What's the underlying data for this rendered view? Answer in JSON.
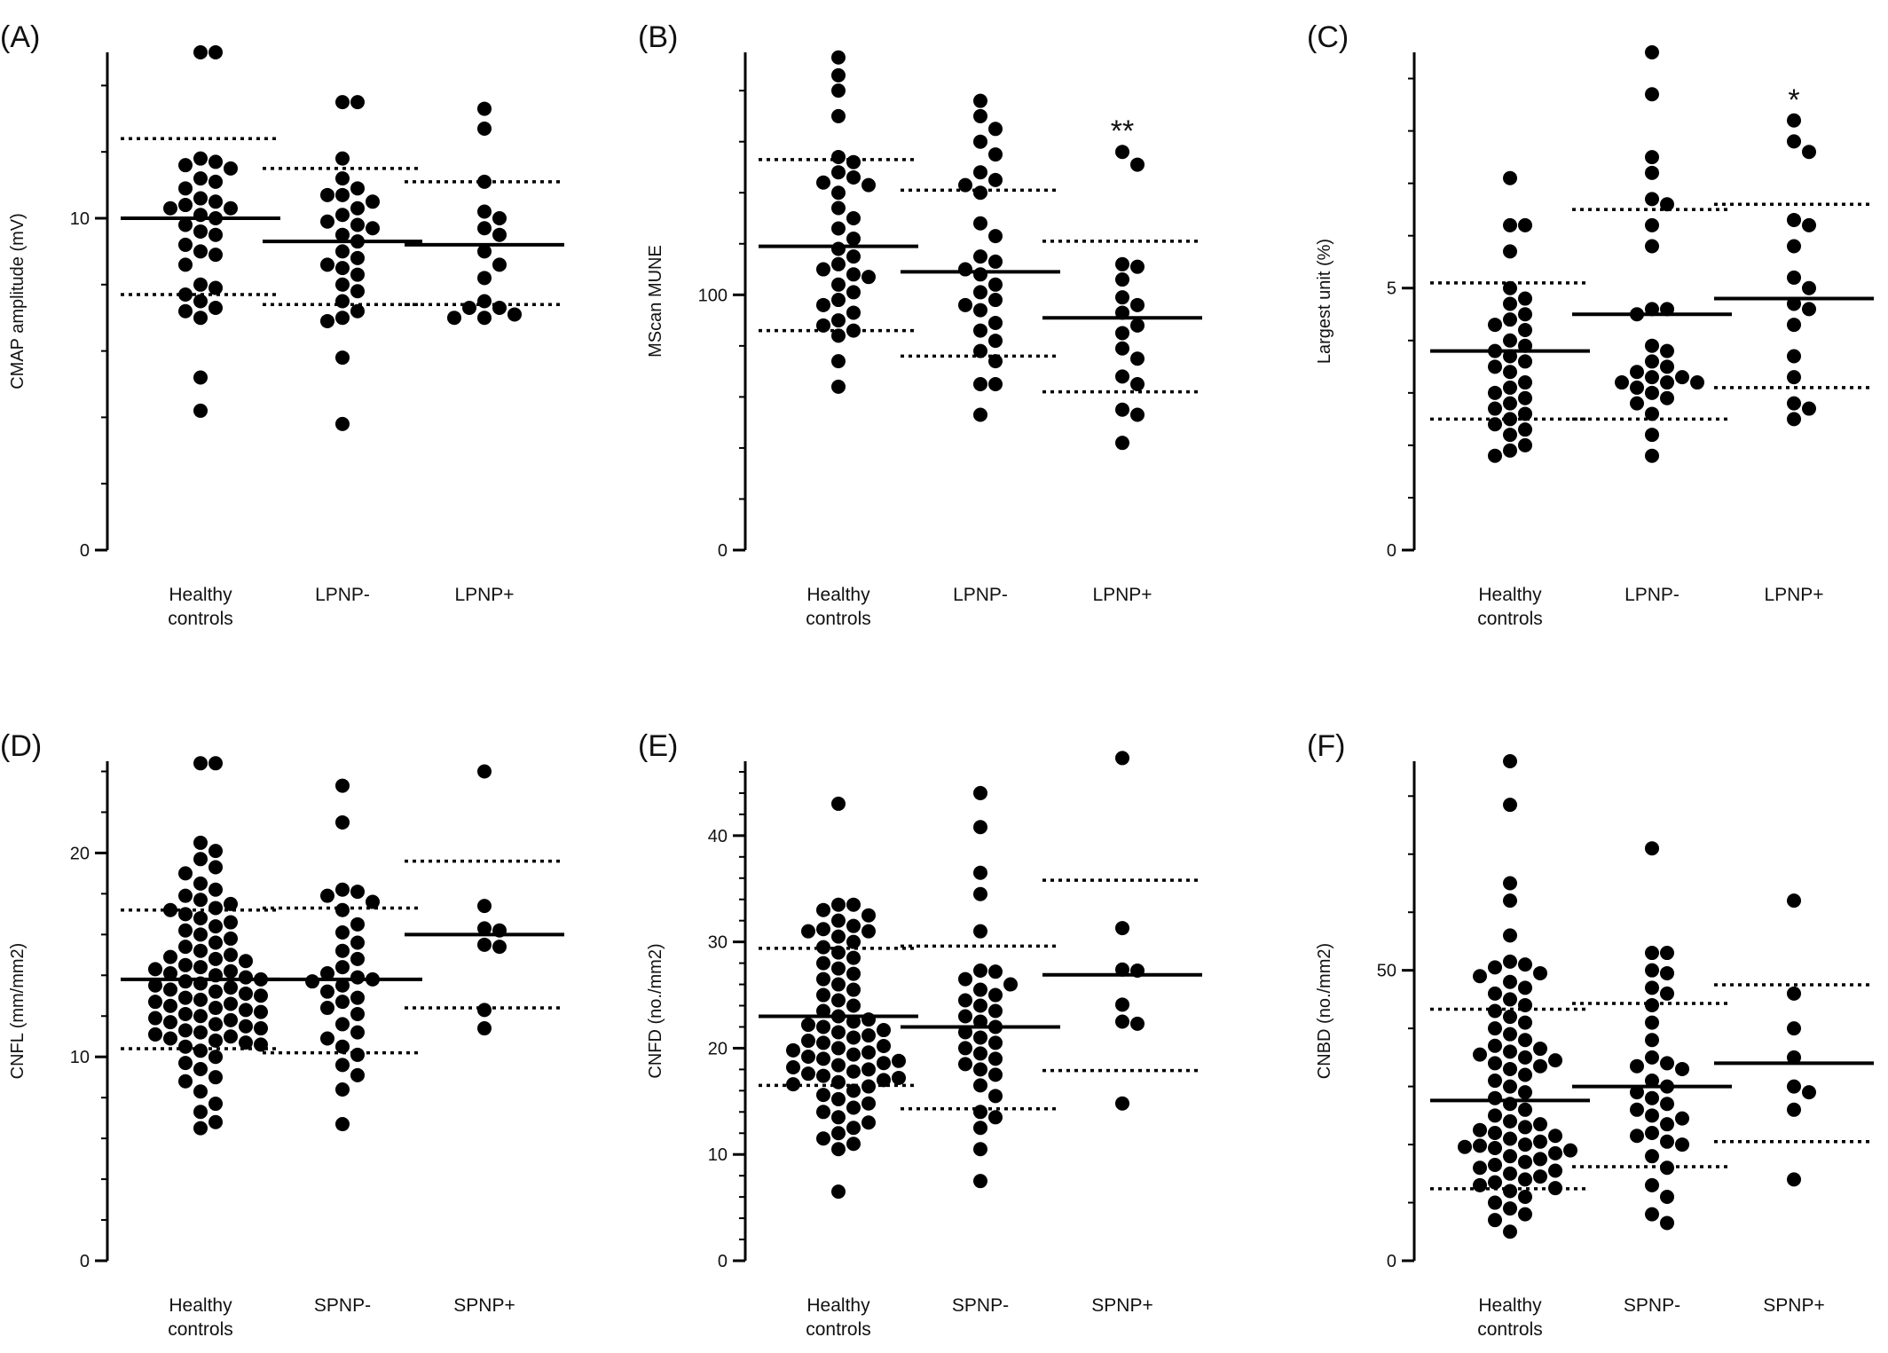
{
  "figure": {
    "background": "#ffffff",
    "ink": "#000000"
  },
  "chart_data": [
    {
      "panel_label": "(A)",
      "type": "scatter",
      "subtype": "dot-plot",
      "ylabel": "CMAP amplitude (mV)",
      "ylim": [
        0,
        15
      ],
      "yticks": [
        0,
        10
      ],
      "ytick_labels": [
        "0",
        "10"
      ],
      "categories": [
        "Healthy\ncontrols",
        "LPNP-",
        "LPNP+"
      ],
      "annotations": [
        "",
        "",
        ""
      ],
      "series": [
        {
          "values": [
            15.0,
            15.0,
            11.8,
            11.7,
            11.6,
            11.5,
            11.2,
            11.1,
            10.9,
            10.6,
            10.5,
            10.4,
            10.3,
            10.3,
            10.1,
            10.0,
            9.8,
            9.6,
            9.5,
            9.2,
            9.0,
            8.9,
            8.6,
            8.0,
            7.9,
            7.7,
            7.5,
            7.3,
            7.2,
            7.0,
            5.2,
            4.2
          ],
          "mean": 10.0,
          "upper": 12.4,
          "lower": 7.7
        },
        {
          "values": [
            13.5,
            13.5,
            11.8,
            11.2,
            10.9,
            10.7,
            10.7,
            10.5,
            10.3,
            10.1,
            9.9,
            9.8,
            9.7,
            9.5,
            9.3,
            9.0,
            8.8,
            8.6,
            8.5,
            8.3,
            8.0,
            7.8,
            7.5,
            7.2,
            7.0,
            6.9,
            5.8,
            3.8
          ],
          "mean": 9.3,
          "upper": 11.5,
          "lower": 7.4
        },
        {
          "values": [
            13.3,
            12.7,
            11.1,
            10.2,
            10.0,
            9.7,
            9.5,
            9.0,
            8.6,
            8.2,
            7.5,
            7.3,
            7.3,
            7.1,
            7.0,
            7.0
          ],
          "mean": 9.2,
          "upper": 11.1,
          "lower": 7.4
        }
      ]
    },
    {
      "panel_label": "(B)",
      "type": "scatter",
      "subtype": "dot-plot",
      "ylabel": "MScan MUNE",
      "ylim": [
        0,
        195
      ],
      "yticks": [
        0,
        100
      ],
      "ytick_labels": [
        "0",
        "100"
      ],
      "categories": [
        "Healthy\ncontrols",
        "LPNP-",
        "LPNP+"
      ],
      "annotations": [
        "",
        "",
        "**"
      ],
      "series": [
        {
          "values": [
            193,
            186,
            180,
            170,
            154,
            152,
            148,
            146,
            144,
            143,
            140,
            134,
            130,
            126,
            122,
            118,
            115,
            112,
            110,
            108,
            107,
            104,
            101,
            98,
            96,
            93,
            90,
            88,
            86,
            84,
            74,
            64
          ],
          "mean": 119,
          "upper": 153,
          "lower": 86
        },
        {
          "values": [
            176,
            170,
            165,
            160,
            155,
            148,
            145,
            143,
            140,
            128,
            123,
            115,
            113,
            110,
            108,
            104,
            101,
            98,
            96,
            94,
            89,
            86,
            82,
            78,
            74,
            65,
            65,
            53
          ],
          "mean": 109,
          "upper": 141,
          "lower": 76
        },
        {
          "values": [
            156,
            151,
            112,
            111,
            106,
            99,
            96,
            93,
            88,
            85,
            79,
            75,
            68,
            65,
            55,
            53,
            42
          ],
          "mean": 91,
          "upper": 121,
          "lower": 62
        }
      ]
    },
    {
      "panel_label": "(C)",
      "type": "scatter",
      "subtype": "dot-plot",
      "ylabel": "Largest unit (%)",
      "ylim": [
        0,
        9.5
      ],
      "yticks": [
        0,
        5
      ],
      "ytick_labels": [
        "0",
        "5"
      ],
      "categories": [
        "Healthy\ncontrols",
        "LPNP-",
        "LPNP+"
      ],
      "annotations": [
        "",
        "",
        "*"
      ],
      "series": [
        {
          "values": [
            7.1,
            6.2,
            6.2,
            5.7,
            5.0,
            4.8,
            4.7,
            4.5,
            4.4,
            4.3,
            4.2,
            4.0,
            3.9,
            3.8,
            3.7,
            3.6,
            3.5,
            3.4,
            3.2,
            3.1,
            3.0,
            2.9,
            2.8,
            2.7,
            2.6,
            2.5,
            2.4,
            2.3,
            2.2,
            2.0,
            1.9,
            1.8
          ],
          "mean": 3.8,
          "upper": 5.1,
          "lower": 2.5
        },
        {
          "values": [
            9.5,
            8.7,
            7.5,
            7.2,
            6.7,
            6.6,
            6.2,
            5.8,
            4.6,
            4.6,
            4.5,
            3.9,
            3.8,
            3.6,
            3.5,
            3.4,
            3.3,
            3.3,
            3.2,
            3.2,
            3.2,
            3.1,
            3.0,
            2.9,
            2.8,
            2.6,
            2.2,
            1.8
          ],
          "mean": 4.5,
          "upper": 6.5,
          "lower": 2.5
        },
        {
          "values": [
            8.2,
            7.8,
            7.6,
            6.3,
            6.2,
            5.8,
            5.2,
            5.0,
            4.7,
            4.6,
            4.3,
            3.7,
            3.3,
            2.8,
            2.7,
            2.5
          ],
          "mean": 4.8,
          "upper": 6.6,
          "lower": 3.1
        }
      ]
    },
    {
      "panel_label": "(D)",
      "type": "scatter",
      "subtype": "dot-plot",
      "ylabel": "CNFL (mm/mm2)",
      "ylim": [
        0,
        24.5
      ],
      "yticks": [
        0,
        10,
        20
      ],
      "ytick_labels": [
        "0",
        "10",
        "20"
      ],
      "categories": [
        "Healthy\ncontrols",
        "SPNP-",
        "SPNP+"
      ],
      "annotations": [
        "",
        "",
        ""
      ],
      "series": [
        {
          "values": [
            24.4,
            24.4,
            20.5,
            20.1,
            19.7,
            19.3,
            19.0,
            18.5,
            18.2,
            17.9,
            17.7,
            17.5,
            17.3,
            17.2,
            17.0,
            16.8,
            16.6,
            16.4,
            16.2,
            16.0,
            15.8,
            15.6,
            15.4,
            15.2,
            15.0,
            14.9,
            14.8,
            14.7,
            14.5,
            14.4,
            14.3,
            14.2,
            14.1,
            14.0,
            13.9,
            13.8,
            13.7,
            13.6,
            13.5,
            13.4,
            13.3,
            13.2,
            13.1,
            13.0,
            12.9,
            12.8,
            12.7,
            12.6,
            12.5,
            12.4,
            12.3,
            12.2,
            12.1,
            12.0,
            11.9,
            11.8,
            11.7,
            11.6,
            11.5,
            11.4,
            11.3,
            11.2,
            11.1,
            11.0,
            10.9,
            10.8,
            10.7,
            10.6,
            10.5,
            10.3,
            10.0,
            9.7,
            9.4,
            9.0,
            8.8,
            8.3,
            7.7,
            7.3,
            6.8,
            6.5
          ],
          "mean": 13.8,
          "upper": 17.2,
          "lower": 10.4
        },
        {
          "values": [
            23.3,
            21.5,
            18.2,
            18.1,
            17.9,
            17.6,
            17.2,
            16.5,
            16.1,
            15.6,
            15.2,
            14.8,
            14.4,
            14.1,
            13.9,
            13.8,
            13.7,
            13.5,
            13.2,
            12.9,
            12.7,
            12.4,
            12.1,
            11.6,
            11.2,
            10.9,
            10.5,
            10.1,
            9.6,
            9.1,
            8.4,
            6.7
          ],
          "mean": 13.8,
          "upper": 17.3,
          "lower": 10.2
        },
        {
          "values": [
            24.0,
            17.4,
            16.3,
            16.2,
            15.5,
            15.4,
            12.3,
            11.4
          ],
          "mean": 16.0,
          "upper": 19.6,
          "lower": 12.4
        }
      ]
    },
    {
      "panel_label": "(E)",
      "type": "scatter",
      "subtype": "dot-plot",
      "ylabel": "CNFD (no./mm2)",
      "ylim": [
        0,
        47
      ],
      "yticks": [
        0,
        10,
        20,
        30,
        40
      ],
      "ytick_labels": [
        "0",
        "10",
        "20",
        "30",
        "40"
      ],
      "categories": [
        "Healthy\ncontrols",
        "SPNP-",
        "SPNP+"
      ],
      "annotations": [
        "",
        "",
        ""
      ],
      "series": [
        {
          "values": [
            43.0,
            33.5,
            33.5,
            33.0,
            32.5,
            32.0,
            31.5,
            31.2,
            31.0,
            31.0,
            30.5,
            30.0,
            29.5,
            29.0,
            28.5,
            28.0,
            27.5,
            27.0,
            26.5,
            26.0,
            25.5,
            25.0,
            24.5,
            24.0,
            23.5,
            23.0,
            22.7,
            22.5,
            22.2,
            22.0,
            21.7,
            21.5,
            21.2,
            21.0,
            20.7,
            20.5,
            20.2,
            20.0,
            19.8,
            19.6,
            19.4,
            19.2,
            19.0,
            18.8,
            18.6,
            18.4,
            18.2,
            18.0,
            17.8,
            17.6,
            17.4,
            17.2,
            17.0,
            16.8,
            16.6,
            16.4,
            16.0,
            15.6,
            15.2,
            14.8,
            14.4,
            14.0,
            13.5,
            13.0,
            12.5,
            12.0,
            11.5,
            11.0,
            10.5,
            6.5
          ],
          "mean": 23.0,
          "upper": 29.4,
          "lower": 16.5
        },
        {
          "values": [
            44.0,
            40.8,
            36.5,
            34.5,
            31.0,
            27.3,
            27.2,
            26.5,
            26.0,
            25.5,
            25.0,
            24.5,
            24.0,
            23.5,
            23.0,
            22.5,
            22.0,
            21.5,
            21.0,
            20.5,
            20.0,
            19.5,
            19.0,
            18.5,
            18.0,
            17.5,
            16.5,
            15.5,
            14.0,
            13.5,
            12.5,
            10.5,
            7.5
          ],
          "mean": 22.0,
          "upper": 29.6,
          "lower": 14.3
        },
        {
          "values": [
            47.3,
            31.3,
            27.4,
            27.3,
            24.1,
            22.5,
            22.3,
            14.8
          ],
          "mean": 26.9,
          "upper": 35.8,
          "lower": 17.9
        }
      ]
    },
    {
      "panel_label": "(F)",
      "type": "scatter",
      "subtype": "dot-plot",
      "ylabel": "CNBD (no./mm2)",
      "ylim": [
        0,
        86
      ],
      "yticks": [
        0,
        50
      ],
      "ytick_labels": [
        "0",
        "50"
      ],
      "categories": [
        "Healthy\ncontrols",
        "SPNP-",
        "SPNP+"
      ],
      "annotations": [
        "",
        "",
        ""
      ],
      "series": [
        {
          "values": [
            86.0,
            78.5,
            65.0,
            62.0,
            56.0,
            51.5,
            51.0,
            50.5,
            49.5,
            49.0,
            48.0,
            47.0,
            46.0,
            45.0,
            44.0,
            43.0,
            42.0,
            41.0,
            40.0,
            39.0,
            38.0,
            37.0,
            36.5,
            36.0,
            35.5,
            35.0,
            34.5,
            34.0,
            33.5,
            33.0,
            32.0,
            31.0,
            30.0,
            29.0,
            28.0,
            27.0,
            26.0,
            25.0,
            24.0,
            23.5,
            23.0,
            22.5,
            22.0,
            21.5,
            21.0,
            20.5,
            20.0,
            19.8,
            19.6,
            19.4,
            19.0,
            18.5,
            18.0,
            17.5,
            17.0,
            16.5,
            16.0,
            15.5,
            15.0,
            14.5,
            14.0,
            13.5,
            13.0,
            12.5,
            12.0,
            11.0,
            10.0,
            9.0,
            8.0,
            7.0,
            5.0
          ],
          "mean": 27.6,
          "upper": 43.3,
          "lower": 12.4
        },
        {
          "values": [
            71.0,
            53.0,
            53.0,
            50.0,
            49.5,
            47.0,
            46.0,
            44.0,
            41.0,
            38.0,
            35.0,
            34.0,
            33.5,
            33.0,
            31.0,
            30.0,
            29.0,
            28.0,
            27.0,
            26.0,
            25.0,
            24.5,
            23.5,
            22.0,
            21.5,
            20.5,
            20.0,
            18.0,
            16.0,
            13.0,
            11.0,
            8.0,
            6.5
          ],
          "mean": 30.0,
          "upper": 44.3,
          "lower": 16.2
        },
        {
          "values": [
            62.0,
            46.0,
            40.0,
            35.0,
            30.0,
            29.0,
            26.0,
            14.0
          ],
          "mean": 34.0,
          "upper": 47.5,
          "lower": 20.5
        }
      ]
    }
  ]
}
